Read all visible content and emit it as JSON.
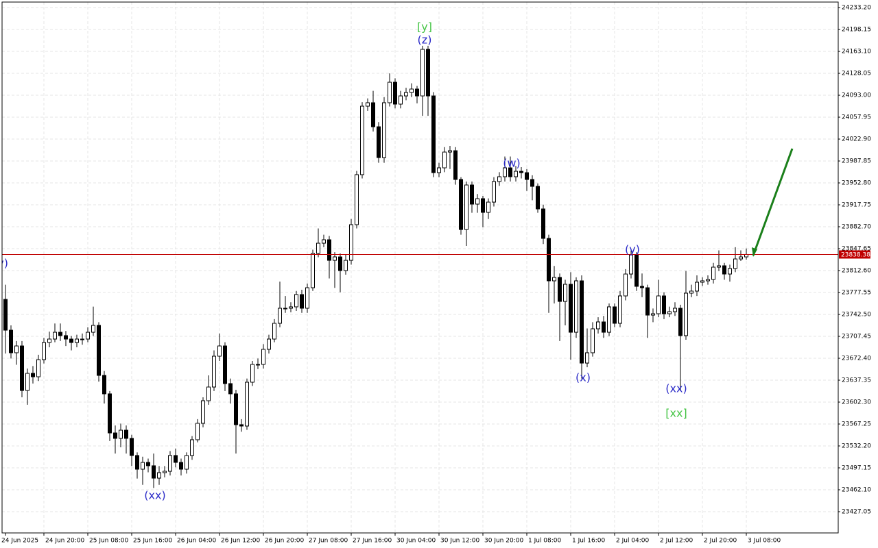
{
  "chart_data": {
    "type": "candlestick",
    "categories": [
      "24 Jun 2025",
      null,
      null,
      null,
      null,
      null,
      null,
      "24 Jun 20:00",
      null,
      null,
      null,
      null,
      null,
      null,
      null,
      "25 Jun 08:00",
      null,
      null,
      null,
      null,
      null,
      null,
      null,
      "25 Jun 16:00",
      null,
      null,
      null,
      null,
      null,
      null,
      null,
      "26 Jun 04:00",
      null,
      null,
      null,
      null,
      null,
      null,
      null,
      "26 Jun 12:00",
      null,
      null,
      null,
      null,
      null,
      null,
      null,
      "26 Jun 20:00",
      null,
      null,
      null,
      null,
      null,
      null,
      null,
      "27 Jun 08:00",
      null,
      null,
      null,
      null,
      null,
      null,
      null,
      "27 Jun 16:00",
      null,
      null,
      null,
      null,
      null,
      null,
      null,
      "30 Jun 04:00",
      null,
      null,
      null,
      null,
      null,
      null,
      null,
      "30 Jun 12:00",
      null,
      null,
      null,
      null,
      null,
      null,
      null,
      "30 Jun 20:00",
      null,
      null,
      null,
      null,
      null,
      null,
      null,
      "1 Jul 08:00",
      null,
      null,
      null,
      null,
      null,
      null,
      null,
      "1 Jul 16:00",
      null,
      null,
      null,
      null,
      null,
      null,
      null,
      "2 Jul 04:00",
      null,
      null,
      null,
      null,
      null,
      null,
      null,
      "2 Jul 12:00",
      null,
      null,
      null,
      null,
      null,
      null,
      null,
      "2 Jul 20:00",
      null,
      null,
      null,
      null,
      null,
      null,
      null,
      "3 Jul 08:00"
    ],
    "open": [
      23766.6,
      23717.3,
      23681.2,
      23692.1,
      23620.9,
      23648.3,
      23642.8,
      23670.2,
      23697.6,
      23703.1,
      23714.0,
      23708.6,
      23703.1,
      23697.6,
      23703.1,
      23703.1,
      23714.0,
      23725.0,
      23645.0,
      23615.5,
      23553.0,
      23544.3,
      23557.4,
      23544.3,
      23516.9,
      23495.0,
      23505.9,
      23500.5,
      23480.7,
      23489.5,
      23491.7,
      23516.9,
      23505.9,
      23495.0,
      23516.9,
      23542.1,
      23568.4,
      23604.5,
      23626.4,
      23675.7,
      23692.1,
      23631.9,
      23615.5,
      23566.2,
      23564.0,
      23634.1,
      23662.6,
      23662.6,
      23686.7,
      23703.1,
      23728.3,
      23752.4,
      23752.4,
      23754.6,
      23774.3,
      23752.4,
      23785.2,
      23840.0,
      23856.4,
      23861.9,
      23829.0,
      23834.5,
      23812.6,
      23829.0,
      23886.0,
      23966.0,
      24075.5,
      24081.0,
      24042.6,
      23993.3,
      24081.0,
      24113.8,
      24078.8,
      24091.9,
      24097.4,
      24102.9,
      24091.9,
      24166.4,
      24091.9,
      23969.2,
      23976.9,
      24002.1,
      24004.3,
      23958.3,
      23878.3,
      23949.5,
      23918.9,
      23927.6,
      23905.7,
      23922.1,
      23955.0,
      23962.7,
      23976.9,
      23962.7,
      23971.4,
      23969.2,
      23958.3,
      23947.3,
      23911.2,
      23864.1,
      23796.2,
      23801.7,
      23763.3,
      23790.7,
      23714.0,
      23796.2,
      23664.7,
      23681.2,
      23719.5,
      23730.5,
      23714.0,
      23754.6,
      23728.3,
      23772.1,
      23807.1,
      23837.8,
      23787.4,
      23785.2,
      23741.4,
      23743.6,
      23772.1,
      23743.6,
      23746.9,
      23752.4,
      23708.6,
      23776.5,
      23779.8,
      23794.0,
      23796.2,
      23798.4,
      23818.1,
      23820.3,
      23807.1,
      23815.9,
      23831.2,
      23834.5
    ],
    "high": [
      23790,
      23725,
      23700,
      23700,
      23656,
      23660,
      23678,
      23705,
      23715,
      23728,
      23728,
      23716,
      23708,
      23710,
      23712,
      23722,
      23755,
      23730,
      23652,
      23620,
      23565,
      23568,
      23565,
      23550,
      23522,
      23515,
      23512,
      23520,
      23500,
      23500,
      23524,
      23528,
      23512,
      23522,
      23548,
      23575,
      23610,
      23645,
      23685,
      23712,
      23698,
      23640,
      23622,
      23575,
      23640,
      23668,
      23672,
      23695,
      23710,
      23735,
      23795,
      23772,
      23762,
      23780,
      23782,
      23792,
      23846,
      23880,
      23870,
      23868,
      23842,
      23840,
      23838,
      23895,
      23972,
      24082,
      24088,
      24100,
      24050,
      24090,
      24128,
      24120,
      24100,
      24105,
      24112,
      24108,
      24172,
      24172,
      24098,
      23985,
      24010,
      24012,
      24010,
      23962,
      23955,
      23955,
      23935,
      23932,
      23928,
      23962,
      23970,
      23995,
      23995,
      23980,
      23978,
      23975,
      23965,
      23952,
      23918,
      23870,
      23820,
      23808,
      23798,
      23810,
      23802,
      23805,
      23720,
      23730,
      23738,
      23740,
      23760,
      23760,
      23780,
      23815,
      23845,
      23842,
      23808,
      23790,
      23752,
      23798,
      23778,
      23755,
      23762,
      23758,
      23812,
      23790,
      23805,
      23802,
      23805,
      23825,
      23845,
      23825,
      23822,
      23850,
      23845,
      23848
    ],
    "low": [
      23680,
      23672,
      23662,
      23610,
      23598,
      23632,
      23636,
      23664,
      23690,
      23698,
      23700,
      23692,
      23685,
      23690,
      23694,
      23698,
      23708,
      23635,
      23600,
      23540,
      23520,
      23530,
      23520,
      23500,
      23480,
      23470,
      23490,
      23465,
      23470,
      23482,
      23485,
      23498,
      23485,
      23488,
      23510,
      23538,
      23562,
      23598,
      23620,
      23668,
      23620,
      23600,
      23520,
      23555,
      23558,
      23628,
      23655,
      23656,
      23680,
      23698,
      23722,
      23745,
      23746,
      23748,
      23745,
      23745,
      23780,
      23834,
      23850,
      23800,
      23785,
      23778,
      23806,
      23822,
      23880,
      23960,
      24068,
      24035,
      23985,
      23985,
      24075,
      24072,
      24072,
      24085,
      24090,
      24080,
      24060,
      24060,
      23962,
      23962,
      23970,
      23975,
      23950,
      23870,
      23852,
      23905,
      23905,
      23882,
      23895,
      23915,
      23948,
      23955,
      23955,
      23955,
      23960,
      23940,
      23925,
      23905,
      23855,
      23745,
      23760,
      23700,
      23725,
      23670,
      23705,
      23640,
      23658,
      23675,
      23712,
      23705,
      23708,
      23722,
      23722,
      23765,
      23800,
      23780,
      23770,
      23705,
      23730,
      23738,
      23735,
      23738,
      23740,
      23620,
      23702,
      23770,
      23772,
      23788,
      23790,
      23792,
      23812,
      23798,
      23795,
      23810,
      23828,
      23830
    ],
    "close": [
      23717.3,
      23681.2,
      23692.1,
      23620.9,
      23648.3,
      23642.8,
      23670.2,
      23697.6,
      23703.1,
      23714.0,
      23708.6,
      23703.1,
      23697.6,
      23703.1,
      23703.1,
      23714.0,
      23725.0,
      23645.0,
      23615.5,
      23553.0,
      23544.3,
      23557.4,
      23544.3,
      23516.9,
      23495.0,
      23505.9,
      23500.5,
      23480.7,
      23489.5,
      23491.7,
      23516.9,
      23505.9,
      23495.0,
      23516.9,
      23542.1,
      23568.4,
      23604.5,
      23626.4,
      23675.7,
      23692.1,
      23631.9,
      23615.5,
      23566.2,
      23564.0,
      23634.1,
      23662.6,
      23662.6,
      23686.7,
      23703.1,
      23728.3,
      23752.4,
      23752.4,
      23754.6,
      23774.3,
      23752.4,
      23785.2,
      23840.0,
      23856.4,
      23861.9,
      23829.0,
      23834.5,
      23812.6,
      23829.0,
      23886.0,
      23966.0,
      24075.5,
      24081.0,
      24042.6,
      23993.3,
      24081.0,
      24113.8,
      24078.8,
      24091.9,
      24097.4,
      24102.9,
      24091.9,
      24166.4,
      24091.9,
      23969.2,
      23976.9,
      24002.1,
      24004.3,
      23958.3,
      23878.3,
      23949.5,
      23918.9,
      23927.6,
      23905.7,
      23922.1,
      23955.0,
      23962.7,
      23976.9,
      23962.7,
      23971.4,
      23969.2,
      23958.3,
      23947.3,
      23911.2,
      23864.1,
      23796.2,
      23801.7,
      23763.3,
      23790.7,
      23714.0,
      23796.2,
      23664.7,
      23681.2,
      23719.5,
      23730.5,
      23714.0,
      23754.6,
      23728.3,
      23772.1,
      23807.1,
      23837.8,
      23787.4,
      23785.2,
      23741.4,
      23743.6,
      23772.1,
      23743.6,
      23746.9,
      23752.4,
      23708.6,
      23776.5,
      23779.8,
      23794.0,
      23796.2,
      23798.4,
      23818.1,
      23820.3,
      23807.1,
      23815.9,
      23831.2,
      23834.5,
      23838.4
    ],
    "ylim": [
      23393.1,
      24242.0
    ],
    "yticks": [
      {
        "value": 24233.2,
        "label": "24233.20"
      },
      24198.15,
      {
        "value": 24163.1,
        "label": "24163.10"
      },
      24128.05,
      {
        "value": 24093,
        "label": "24093.00"
      },
      24057.95,
      {
        "value": 24022.9,
        "label": "24022.90"
      },
      23987.85,
      {
        "value": 23952.8,
        "label": "23952.80"
      },
      23917.75,
      {
        "value": 23882.7,
        "label": "23882.70"
      },
      23847.65,
      {
        "value": 23812.6,
        "label": "23812.60"
      },
      23777.55,
      {
        "value": 23742.5,
        "label": "23742.50"
      },
      23707.45,
      {
        "value": 23672.4,
        "label": "23672.40"
      },
      23637.35,
      {
        "value": 23602.3,
        "label": "23602.30"
      },
      23567.25,
      {
        "value": 23532.2,
        "label": "23532.20"
      },
      23497.15,
      {
        "value": 23462.1,
        "label": "23462.10"
      },
      23427.05
    ],
    "grid": true,
    "up_color": "#ffffff",
    "down_color": "#000000",
    "current_price": 23838.38,
    "current_price_color": "#c00000",
    "annotations": [
      {
        "text": "(y)",
        "color": "#2a2ac8"
      },
      {
        "text": "(xx)",
        "color": "#2a2ac8"
      },
      {
        "text": "[y]",
        "color": "#44c444"
      },
      {
        "text": "(z)",
        "color": "#2a2ac8"
      },
      {
        "text": "(w)",
        "color": "#2a2ac8"
      },
      {
        "text": "(x)",
        "color": "#2a2ac8"
      },
      {
        "text": "(y)",
        "color": "#2a2ac8"
      },
      {
        "text": "(xx)",
        "color": "#2a2ac8"
      },
      {
        "text": "[xx]",
        "color": "#44c444"
      }
    ]
  }
}
